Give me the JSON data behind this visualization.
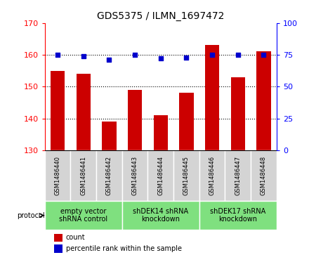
{
  "title": "GDS5375 / ILMN_1697472",
  "samples": [
    "GSM1486440",
    "GSM1486441",
    "GSM1486442",
    "GSM1486443",
    "GSM1486444",
    "GSM1486445",
    "GSM1486446",
    "GSM1486447",
    "GSM1486448"
  ],
  "counts": [
    155,
    154,
    139,
    149,
    141,
    148,
    163,
    153,
    161
  ],
  "percentiles": [
    75,
    74,
    71,
    75,
    72,
    73,
    75,
    75,
    75
  ],
  "ylim_left": [
    130,
    170
  ],
  "ylim_right": [
    0,
    100
  ],
  "yticks_left": [
    130,
    140,
    150,
    160,
    170
  ],
  "yticks_right": [
    0,
    25,
    50,
    75,
    100
  ],
  "bar_color": "#cc0000",
  "dot_color": "#0000cc",
  "grid_yticks": [
    140,
    150,
    160
  ],
  "proto_groups": [
    {
      "label": "empty vector\nshRNA control",
      "start": 0,
      "end": 3
    },
    {
      "label": "shDEK14 shRNA\nknockdown",
      "start": 3,
      "end": 6
    },
    {
      "label": "shDEK17 shRNA\nknockdown",
      "start": 6,
      "end": 9
    }
  ],
  "legend_count_label": "count",
  "legend_pct_label": "percentile rank within the sample",
  "protocol_label": "protocol",
  "gray_color": "#d4d4d4",
  "green_color": "#7fe07f",
  "bg_color": "#ffffff",
  "title_fontsize": 10,
  "tick_fontsize": 8,
  "sample_fontsize": 6,
  "proto_fontsize": 7,
  "legend_fontsize": 7
}
